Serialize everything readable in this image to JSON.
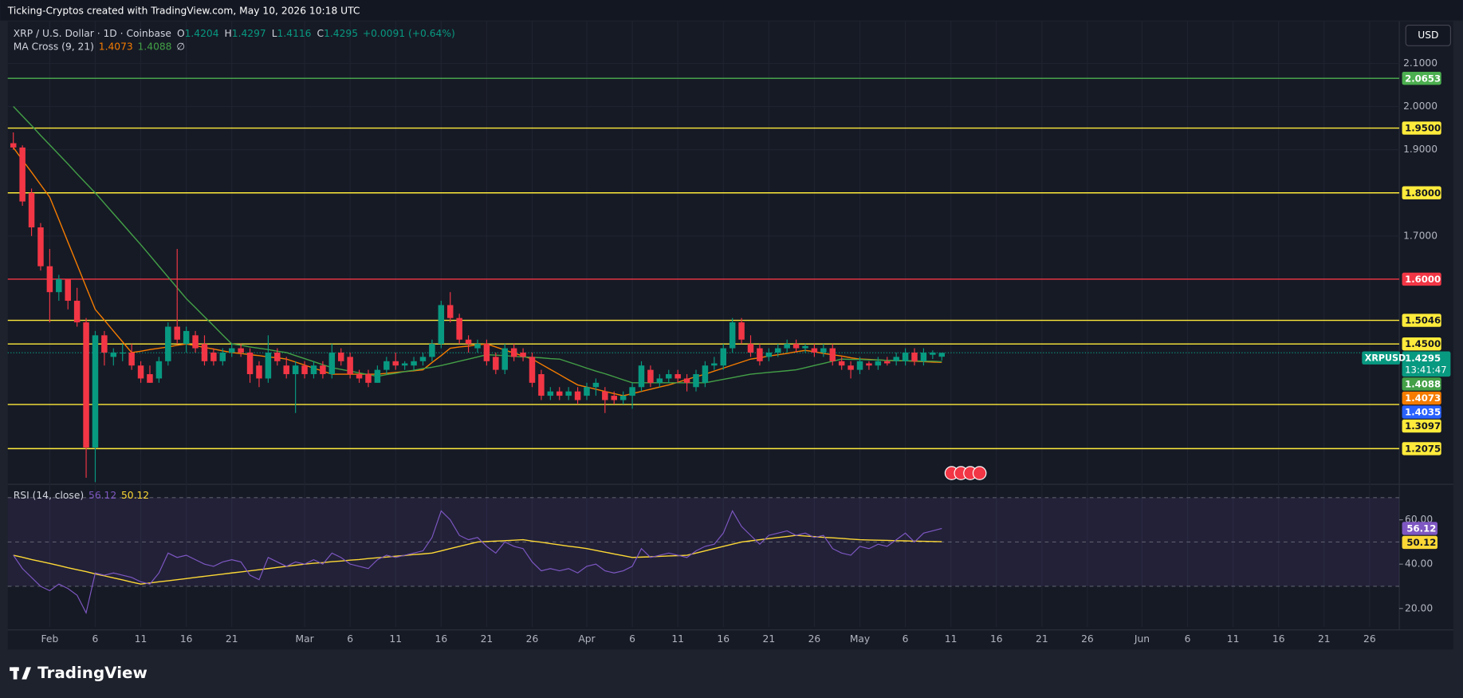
{
  "header": {
    "credit": "Ticking-Cryptos created with TradingView.com, May 10, 2026 10:18 UTC",
    "currency_button": "USD",
    "logo": "TradingView"
  },
  "chart_data": {
    "type": "candlestick",
    "symbol": "XRP / U.S. Dollar · 1D · Coinbase",
    "ohlc_letters": [
      "O",
      "H",
      "L",
      "C"
    ],
    "change": "+0.0091 (+0.64%)",
    "up_color": "#089981",
    "down_color": "#f23645",
    "grid": true,
    "x": [
      "Jan 28",
      "Jan 29",
      "Jan 30",
      "Jan 31",
      "Feb 1",
      "Feb 2",
      "Feb 3",
      "Feb 4",
      "Feb 5",
      "Feb 6",
      "Feb 7",
      "Feb 8",
      "Feb 9",
      "Feb 10",
      "Feb 11",
      "Feb 12",
      "Feb 13",
      "Feb 14",
      "Feb 15",
      "Feb 16",
      "Feb 17",
      "Feb 18",
      "Feb 19",
      "Feb 20",
      "Feb 21",
      "Feb 22",
      "Feb 23",
      "Feb 24",
      "Feb 25",
      "Feb 26",
      "Feb 27",
      "Feb 28",
      "Mar 1",
      "Mar 2",
      "Mar 3",
      "Mar 4",
      "Mar 5",
      "Mar 6",
      "Mar 7",
      "Mar 8",
      "Mar 9",
      "Mar 10",
      "Mar 11",
      "Mar 12",
      "Mar 13",
      "Mar 14",
      "Mar 15",
      "Mar 16",
      "Mar 17",
      "Mar 18",
      "Mar 19",
      "Mar 20",
      "Mar 21",
      "Mar 22",
      "Mar 23",
      "Mar 24",
      "Mar 25",
      "Mar 26",
      "Mar 27",
      "Mar 28",
      "Mar 29",
      "Mar 30",
      "Mar 31",
      "Apr 1",
      "Apr 2",
      "Apr 3",
      "Apr 4",
      "Apr 5",
      "Apr 6",
      "Apr 7",
      "Apr 8",
      "Apr 9",
      "Apr 10",
      "Apr 11",
      "Apr 12",
      "Apr 13",
      "Apr 14",
      "Apr 15",
      "Apr 16",
      "Apr 17",
      "Apr 18",
      "Apr 19",
      "Apr 20",
      "Apr 21",
      "Apr 22",
      "Apr 23",
      "Apr 24",
      "Apr 25",
      "Apr 26",
      "Apr 27",
      "Apr 28",
      "Apr 29",
      "Apr 30",
      "May 1",
      "May 2",
      "May 3",
      "May 4",
      "May 5",
      "May 6",
      "May 7",
      "May 8",
      "May 9",
      "May 10"
    ],
    "open": [
      1.915,
      1.905,
      1.8,
      1.72,
      1.63,
      1.57,
      1.6,
      1.55,
      1.5,
      1.21,
      1.47,
      1.42,
      1.43,
      1.43,
      1.4,
      1.38,
      1.37,
      1.41,
      1.49,
      1.45,
      1.47,
      1.45,
      1.43,
      1.41,
      1.43,
      1.44,
      1.43,
      1.4,
      1.37,
      1.43,
      1.4,
      1.38,
      1.4,
      1.38,
      1.4,
      1.38,
      1.43,
      1.42,
      1.38,
      1.38,
      1.36,
      1.39,
      1.41,
      1.4,
      1.4,
      1.41,
      1.42,
      1.45,
      1.54,
      1.51,
      1.46,
      1.44,
      1.45,
      1.42,
      1.39,
      1.44,
      1.43,
      1.42,
      1.38,
      1.33,
      1.34,
      1.33,
      1.34,
      1.33,
      1.35,
      1.34,
      1.33,
      1.32,
      1.33,
      1.35,
      1.39,
      1.36,
      1.37,
      1.38,
      1.37,
      1.35,
      1.36,
      1.4,
      1.4,
      1.44,
      1.5,
      1.45,
      1.44,
      1.42,
      1.43,
      1.44,
      1.45,
      1.44,
      1.44,
      1.43,
      1.44,
      1.41,
      1.4,
      1.39,
      1.405,
      1.4,
      1.41,
      1.41,
      1.41,
      1.43,
      1.41,
      1.425,
      1.4204
    ],
    "high": [
      1.94,
      1.91,
      1.81,
      1.73,
      1.67,
      1.61,
      1.6,
      1.58,
      1.51,
      1.48,
      1.48,
      1.44,
      1.45,
      1.45,
      1.41,
      1.4,
      1.42,
      1.5,
      1.67,
      1.49,
      1.48,
      1.47,
      1.44,
      1.44,
      1.45,
      1.45,
      1.44,
      1.41,
      1.47,
      1.44,
      1.42,
      1.41,
      1.41,
      1.41,
      1.41,
      1.45,
      1.44,
      1.43,
      1.39,
      1.39,
      1.4,
      1.42,
      1.43,
      1.41,
      1.42,
      1.43,
      1.46,
      1.55,
      1.57,
      1.52,
      1.47,
      1.46,
      1.46,
      1.43,
      1.45,
      1.45,
      1.44,
      1.43,
      1.39,
      1.35,
      1.35,
      1.35,
      1.35,
      1.36,
      1.37,
      1.35,
      1.34,
      1.34,
      1.36,
      1.41,
      1.4,
      1.38,
      1.39,
      1.39,
      1.38,
      1.39,
      1.41,
      1.42,
      1.45,
      1.51,
      1.51,
      1.47,
      1.45,
      1.44,
      1.45,
      1.46,
      1.46,
      1.45,
      1.45,
      1.45,
      1.45,
      1.42,
      1.41,
      1.42,
      1.41,
      1.42,
      1.42,
      1.43,
      1.44,
      1.44,
      1.44,
      1.435,
      1.4297
    ],
    "low": [
      1.9,
      1.77,
      1.7,
      1.62,
      1.5,
      1.55,
      1.53,
      1.49,
      1.14,
      1.13,
      1.4,
      1.4,
      1.41,
      1.39,
      1.36,
      1.36,
      1.36,
      1.4,
      1.45,
      1.43,
      1.43,
      1.4,
      1.4,
      1.4,
      1.42,
      1.42,
      1.36,
      1.35,
      1.36,
      1.4,
      1.37,
      1.29,
      1.37,
      1.37,
      1.37,
      1.37,
      1.4,
      1.37,
      1.36,
      1.35,
      1.36,
      1.38,
      1.39,
      1.39,
      1.39,
      1.4,
      1.41,
      1.44,
      1.5,
      1.45,
      1.43,
      1.43,
      1.4,
      1.38,
      1.38,
      1.41,
      1.41,
      1.35,
      1.32,
      1.32,
      1.32,
      1.32,
      1.31,
      1.32,
      1.33,
      1.29,
      1.31,
      1.31,
      1.3,
      1.34,
      1.35,
      1.35,
      1.36,
      1.36,
      1.34,
      1.34,
      1.35,
      1.39,
      1.39,
      1.43,
      1.45,
      1.42,
      1.4,
      1.41,
      1.42,
      1.43,
      1.43,
      1.43,
      1.42,
      1.42,
      1.4,
      1.39,
      1.37,
      1.38,
      1.39,
      1.39,
      1.4,
      1.4,
      1.4,
      1.4,
      1.4,
      1.415,
      1.4116
    ],
    "close": [
      1.905,
      1.78,
      1.72,
      1.63,
      1.57,
      1.6,
      1.55,
      1.5,
      1.21,
      1.47,
      1.43,
      1.43,
      1.43,
      1.4,
      1.37,
      1.36,
      1.41,
      1.49,
      1.46,
      1.48,
      1.44,
      1.41,
      1.41,
      1.43,
      1.44,
      1.43,
      1.38,
      1.37,
      1.43,
      1.41,
      1.38,
      1.4,
      1.38,
      1.4,
      1.38,
      1.43,
      1.41,
      1.38,
      1.37,
      1.36,
      1.39,
      1.41,
      1.4,
      1.405,
      1.41,
      1.42,
      1.45,
      1.54,
      1.51,
      1.46,
      1.45,
      1.45,
      1.41,
      1.39,
      1.44,
      1.42,
      1.42,
      1.36,
      1.33,
      1.34,
      1.33,
      1.34,
      1.32,
      1.35,
      1.36,
      1.32,
      1.32,
      1.33,
      1.35,
      1.4,
      1.36,
      1.37,
      1.38,
      1.37,
      1.36,
      1.38,
      1.4,
      1.405,
      1.44,
      1.5,
      1.46,
      1.43,
      1.41,
      1.43,
      1.44,
      1.45,
      1.44,
      1.445,
      1.43,
      1.44,
      1.41,
      1.4,
      1.39,
      1.41,
      1.4,
      1.41,
      1.405,
      1.42,
      1.43,
      1.41,
      1.43,
      1.43,
      1.4295
    ],
    "ylim": [
      1.127,
      2.197
    ],
    "yticks": [
      {
        "value": 2.1,
        "label": "2.1000"
      },
      {
        "value": 2.0,
        "label": "2.0000"
      },
      {
        "value": 1.9,
        "label": "1.9000"
      },
      {
        "value": 1.7,
        "label": "1.7000"
      }
    ],
    "xticks": [
      {
        "value": "Feb 1",
        "label": "Feb"
      },
      {
        "value": "Feb 6",
        "label": "6"
      },
      {
        "value": "Feb 11",
        "label": "11"
      },
      {
        "value": "Feb 16",
        "label": "16"
      },
      {
        "value": "Feb 21",
        "label": "21"
      },
      {
        "value": "Mar 1",
        "label": "Mar"
      },
      {
        "value": "Mar 6",
        "label": "6"
      },
      {
        "value": "Mar 11",
        "label": "11"
      },
      {
        "value": "Mar 16",
        "label": "16"
      },
      {
        "value": "Mar 21",
        "label": "21"
      },
      {
        "value": "Mar 26",
        "label": "26"
      },
      {
        "value": "Apr 1",
        "label": "Apr"
      },
      {
        "value": "Apr 6",
        "label": "6"
      },
      {
        "value": "Apr 11",
        "label": "11"
      },
      {
        "value": "Apr 16",
        "label": "16"
      },
      {
        "value": "Apr 21",
        "label": "21"
      },
      {
        "value": "Apr 26",
        "label": "26"
      },
      {
        "value": "May 1",
        "label": "May"
      },
      {
        "value": "May 6",
        "label": "6"
      },
      {
        "value": "May 11",
        "label": "11"
      },
      {
        "value": "May 16",
        "label": "16"
      },
      {
        "value": "May 21",
        "label": "21"
      },
      {
        "value": "May 26",
        "label": "26"
      },
      {
        "value": "Jun 1",
        "label": "Jun"
      },
      {
        "value": "Jun 6",
        "label": "6"
      },
      {
        "value": "Jun 11",
        "label": "11"
      },
      {
        "value": "Jun 16",
        "label": "16"
      },
      {
        "value": "Jun 21",
        "label": "21"
      },
      {
        "value": "Jun 26",
        "label": "26"
      }
    ],
    "levels": [
      {
        "value": 2.0653,
        "color": "#4caf50"
      },
      {
        "value": 1.95,
        "label": "1.9500",
        "color": "#ffeb3b"
      },
      {
        "value": 1.8,
        "label": "1.8000",
        "color": "#ffeb3b"
      },
      {
        "value": 1.6,
        "label": "1.6000",
        "color": "#f23645"
      },
      {
        "value": 1.5046,
        "color": "#ffeb3b"
      },
      {
        "value": 1.45,
        "label": "1.4500",
        "color": "#ffeb3b"
      },
      {
        "value": 1.3097,
        "color": "#ffeb3b"
      },
      {
        "value": 1.2075,
        "color": "#ffeb3b"
      }
    ],
    "extra_tag": {
      "value": 1.4035,
      "color": "#2962ff"
    },
    "last_price": {
      "symbol_tag": "XRPUSD",
      "countdown": "13:41:47"
    },
    "ma_cross": {
      "name": "MA Cross (9, 21)",
      "symbol": "∅",
      "series": [
        {
          "color": "#f57c00",
          "values": [
            1.905,
            1.876,
            1.848,
            1.819,
            1.79,
            1.738,
            1.686,
            1.634,
            1.582,
            1.53,
            1.505,
            1.48,
            1.455,
            1.43,
            1.433,
            1.437,
            1.44,
            1.443,
            1.447,
            1.45,
            1.446,
            1.442,
            1.438,
            1.434,
            1.43,
            1.428,
            1.425,
            1.423,
            1.42,
            1.418,
            1.415,
            1.408,
            1.401,
            1.394,
            1.387,
            1.38,
            1.38,
            1.38,
            1.38,
            1.38,
            1.38,
            1.382,
            1.384,
            1.386,
            1.388,
            1.39,
            1.407,
            1.423,
            1.44,
            1.443,
            1.445,
            1.448,
            1.45,
            1.443,
            1.436,
            1.429,
            1.422,
            1.415,
            1.403,
            1.391,
            1.379,
            1.367,
            1.355,
            1.35,
            1.345,
            1.34,
            1.335,
            1.33,
            1.335,
            1.34,
            1.345,
            1.35,
            1.355,
            1.361,
            1.368,
            1.374,
            1.38,
            1.387,
            1.394,
            1.401,
            1.408,
            1.415,
            1.418,
            1.422,
            1.425,
            1.428,
            1.432,
            1.435,
            1.432,
            1.428,
            1.425,
            1.422,
            1.418,
            1.415,
            1.414,
            1.413,
            1.412,
            1.411,
            1.411,
            1.41,
            1.409,
            1.408,
            1.4073
          ]
        },
        {
          "color": "#43a047",
          "values": [
            2.0,
            1.978,
            1.956,
            1.933,
            1.911,
            1.889,
            1.867,
            1.844,
            1.822,
            1.8,
            1.776,
            1.752,
            1.728,
            1.704,
            1.68,
            1.655,
            1.63,
            1.605,
            1.58,
            1.555,
            1.534,
            1.513,
            1.492,
            1.471,
            1.45,
            1.447,
            1.443,
            1.44,
            1.437,
            1.433,
            1.43,
            1.423,
            1.416,
            1.409,
            1.402,
            1.395,
            1.391,
            1.387,
            1.383,
            1.379,
            1.375,
            1.379,
            1.382,
            1.386,
            1.389,
            1.393,
            1.396,
            1.4,
            1.405,
            1.41,
            1.415,
            1.42,
            1.425,
            1.424,
            1.423,
            1.421,
            1.42,
            1.419,
            1.418,
            1.416,
            1.415,
            1.408,
            1.401,
            1.394,
            1.387,
            1.381,
            1.374,
            1.367,
            1.36,
            1.36,
            1.36,
            1.36,
            1.36,
            1.36,
            1.36,
            1.36,
            1.36,
            1.364,
            1.368,
            1.372,
            1.376,
            1.38,
            1.382,
            1.384,
            1.386,
            1.388,
            1.39,
            1.395,
            1.4,
            1.405,
            1.41,
            1.415,
            1.414,
            1.414,
            1.413,
            1.413,
            1.412,
            1.412,
            1.411,
            1.411,
            1.41,
            1.41,
            1.4088
          ]
        }
      ]
    },
    "rsi": {
      "title": "RSI (14, close)",
      "color": "#7e57c2",
      "ma_color": "#fdd835",
      "ylim": [
        11.6,
        75.6
      ],
      "yticks": [
        {
          "value": 60,
          "label": "60.00"
        },
        {
          "value": 40,
          "label": "40.00"
        },
        {
          "value": 20,
          "label": "20.00"
        }
      ],
      "bands": [
        70,
        50,
        30
      ],
      "values": [
        44,
        38,
        34,
        30,
        28,
        31,
        29,
        26,
        18,
        36,
        35,
        36,
        35,
        34,
        32,
        31,
        36,
        45,
        43,
        44,
        42,
        40,
        39,
        41,
        42,
        41,
        35,
        33,
        43,
        41,
        39,
        41,
        40,
        42,
        40,
        45,
        43,
        40,
        39,
        38,
        42,
        44,
        43,
        44,
        45,
        46,
        52,
        64,
        60,
        53,
        51,
        52,
        48,
        45,
        50,
        48,
        47,
        41,
        37,
        38,
        37,
        38,
        36,
        39,
        40,
        37,
        36,
        37,
        39,
        47,
        43,
        44,
        45,
        44,
        43,
        46,
        48,
        49,
        54,
        64,
        57,
        53,
        49,
        53,
        54,
        55,
        53,
        54,
        52,
        53,
        47,
        45,
        44,
        48,
        47,
        49,
        48,
        51,
        54,
        50,
        54,
        55,
        56.12
      ],
      "ma": [
        44,
        43.1,
        42.1,
        41.2,
        40.3,
        39.4,
        38.4,
        37.5,
        36.6,
        35.6,
        34.7,
        33.8,
        32.9,
        31.9,
        31,
        31.5,
        32,
        32.5,
        33,
        33.5,
        34,
        34.5,
        35,
        35.5,
        36,
        36.5,
        37,
        37.5,
        38,
        38.5,
        39,
        39.5,
        40,
        40.4,
        40.7,
        41.1,
        41.4,
        41.8,
        42.1,
        42.5,
        42.9,
        43.2,
        43.6,
        43.9,
        44.3,
        44.6,
        45,
        46,
        47,
        48,
        49,
        50,
        50.2,
        50.4,
        50.6,
        50.8,
        51,
        50.4,
        49.9,
        49.3,
        48.7,
        48.1,
        47.6,
        47,
        46.2,
        45.4,
        44.6,
        43.8,
        43,
        43.2,
        43.3,
        43.5,
        43.7,
        43.8,
        44,
        45,
        46,
        47,
        48,
        49,
        50,
        50.5,
        51,
        51.5,
        52,
        52.5,
        53,
        52.7,
        52.4,
        52.1,
        51.9,
        51.6,
        51.3,
        51,
        50.9,
        50.8,
        50.7,
        50.6,
        50.5,
        50.4,
        50.3,
        50.2,
        50.12
      ]
    }
  }
}
